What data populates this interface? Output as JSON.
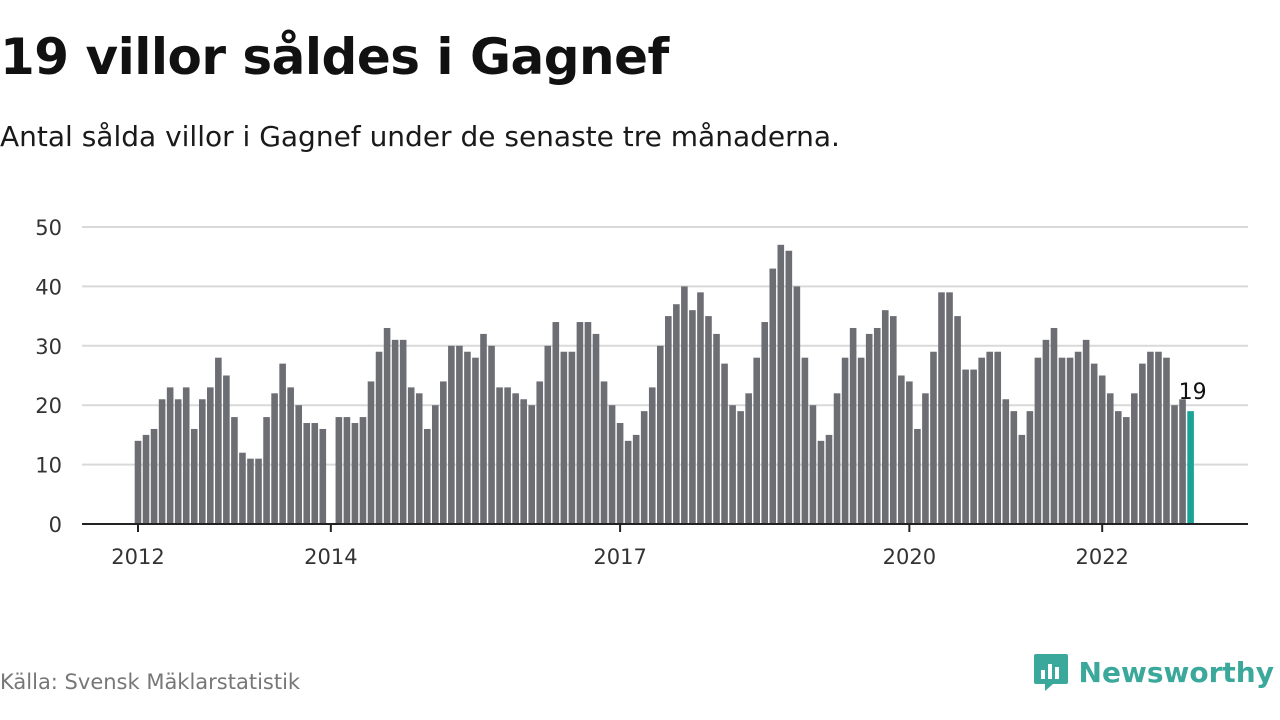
{
  "title": "19 villor såldes i Gagnef",
  "subtitle": "Antal sålda villor i Gagnef under de senaste tre månaderna.",
  "source": "Källa: Svensk Mäklarstatistik",
  "brand": {
    "name": "Newsworthy",
    "icon": "newsworthy-logo-icon",
    "color": "#3aa89a"
  },
  "chart_data": {
    "type": "bar",
    "y_ticks": [
      0,
      10,
      20,
      30,
      40,
      50
    ],
    "ylim": [
      0,
      50
    ],
    "grid": true,
    "x_ticks": [
      {
        "label": "2012",
        "index": 0
      },
      {
        "label": "2014",
        "index": 24
      },
      {
        "label": "2017",
        "index": 60
      },
      {
        "label": "2020",
        "index": 96
      },
      {
        "label": "2022",
        "index": 120
      }
    ],
    "values": [
      14,
      15,
      16,
      21,
      23,
      21,
      23,
      16,
      21,
      23,
      28,
      25,
      18,
      12,
      11,
      11,
      18,
      22,
      27,
      23,
      20,
      17,
      17,
      16,
      null,
      18,
      18,
      17,
      18,
      24,
      29,
      33,
      31,
      31,
      23,
      22,
      16,
      20,
      24,
      30,
      30,
      29,
      28,
      32,
      30,
      23,
      23,
      22,
      21,
      20,
      24,
      30,
      34,
      29,
      29,
      34,
      34,
      32,
      24,
      20,
      17,
      14,
      15,
      19,
      23,
      30,
      35,
      37,
      40,
      36,
      39,
      35,
      32,
      27,
      20,
      19,
      22,
      28,
      34,
      43,
      47,
      46,
      40,
      28,
      20,
      14,
      15,
      22,
      28,
      33,
      28,
      32,
      33,
      36,
      35,
      25,
      24,
      16,
      22,
      29,
      39,
      39,
      35,
      26,
      26,
      28,
      29,
      29,
      21,
      19,
      15,
      19,
      28,
      31,
      33,
      28,
      28,
      29,
      31,
      27,
      25,
      22,
      19,
      18,
      22,
      27,
      29,
      29,
      28,
      20,
      21,
      19
    ],
    "highlight": {
      "index": 131,
      "label": "19",
      "color": "#1aa396"
    },
    "bar_color": "#6d6d74",
    "axis_color": "#222222",
    "grid_color": "#d9d9d9"
  }
}
